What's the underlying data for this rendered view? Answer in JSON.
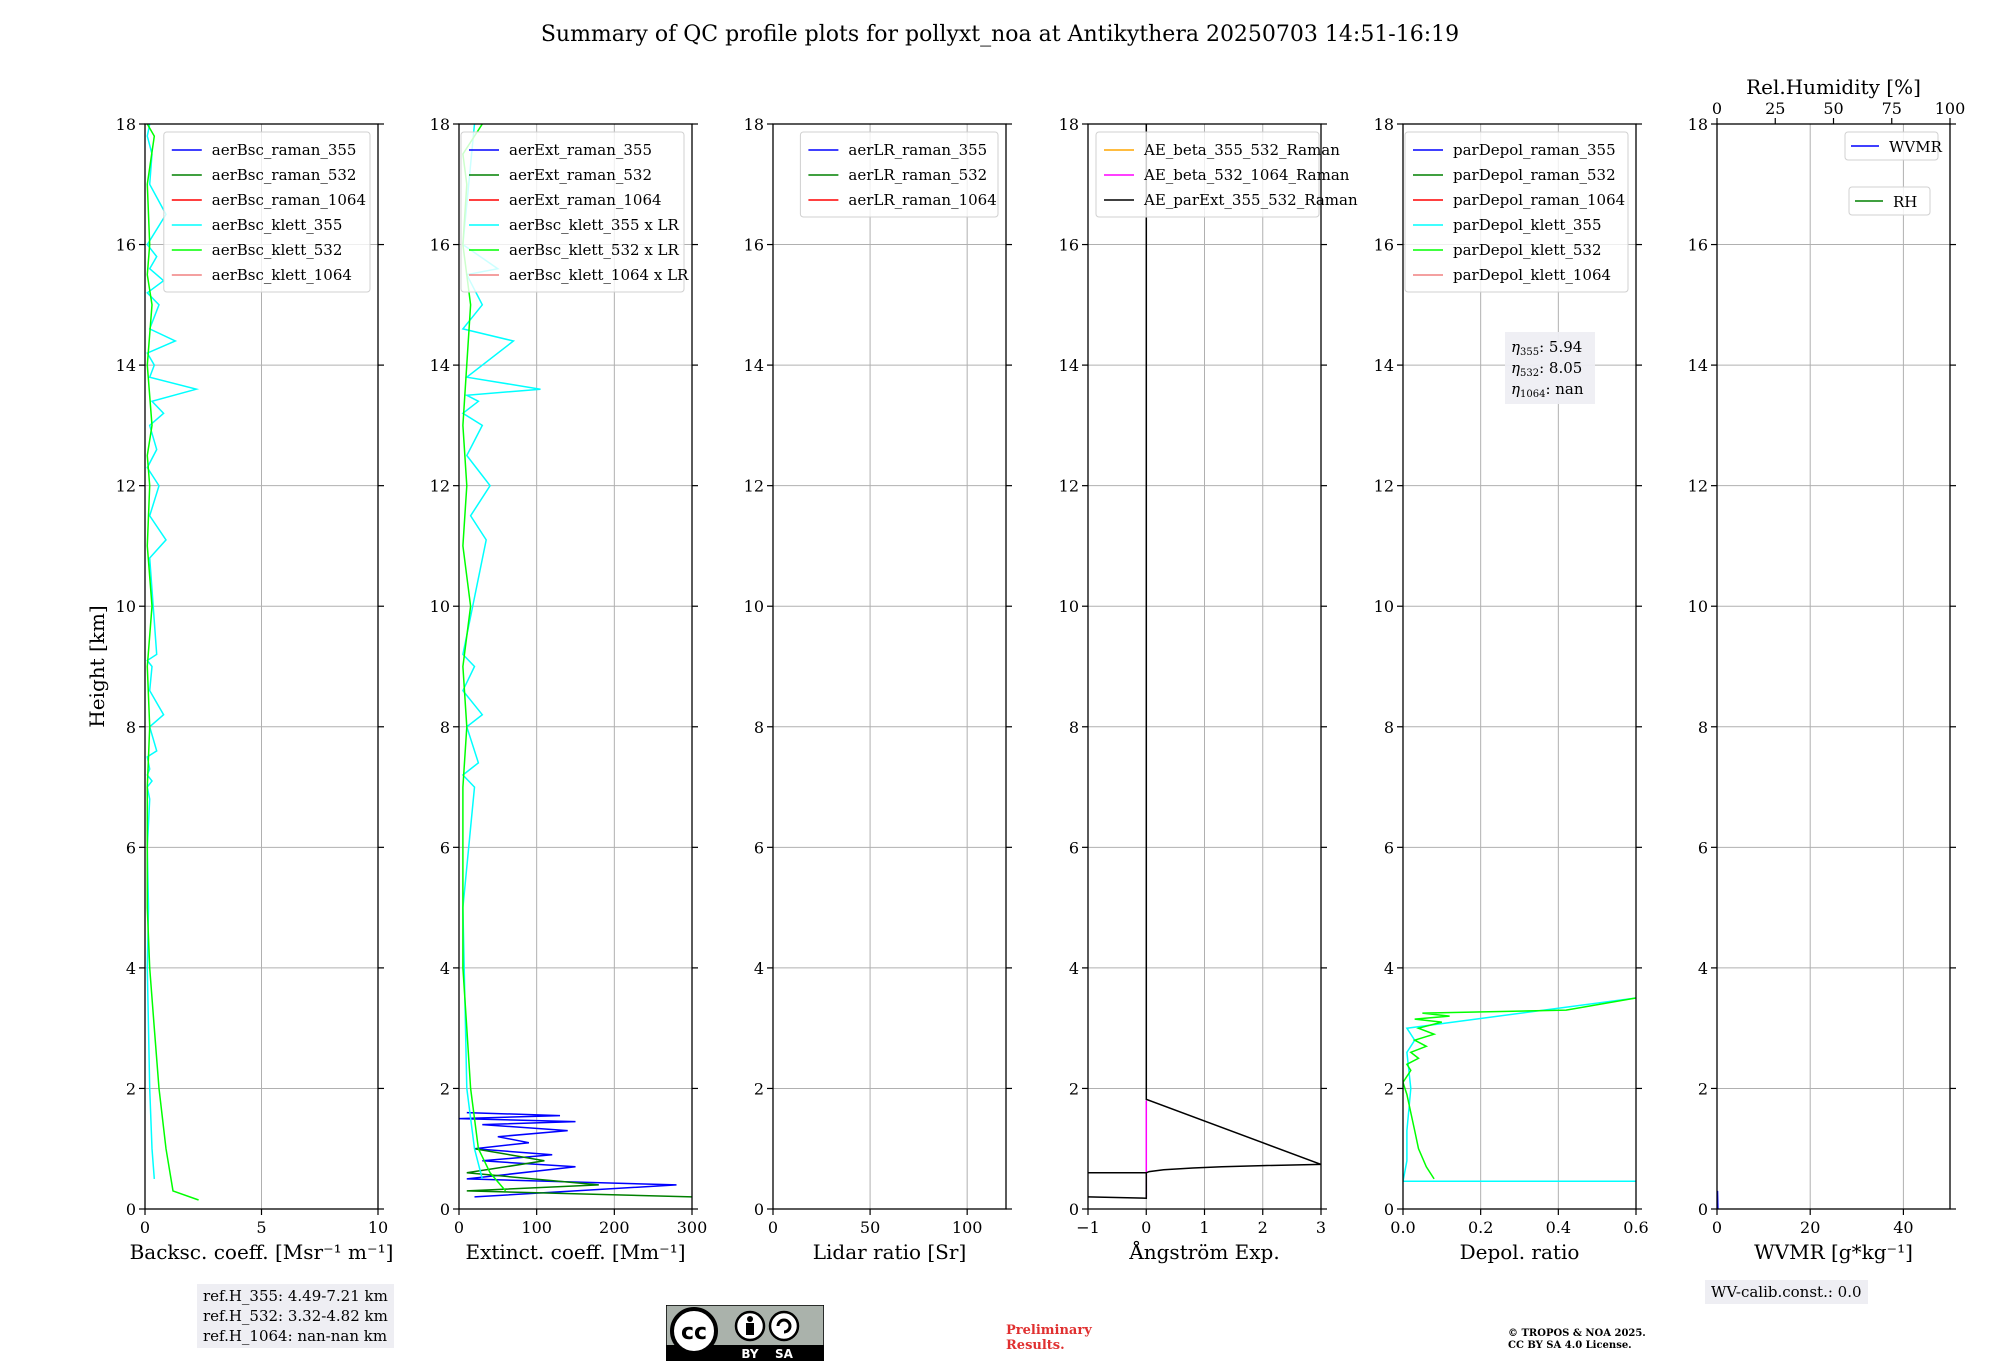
{
  "figure": {
    "title": "Summary of QC profile plots for pollyxt_noa at Antikythera 20250703 14:51-16:19",
    "ref_heights": [
      "ref.H_355: 4.49-7.21 km",
      "ref.H_532: 3.32-4.82 km",
      "ref.H_1064: nan-nan km"
    ],
    "wv_calib": "WV-calib.const.: 0.0",
    "preliminary": [
      "Preliminary",
      "Results."
    ],
    "copyright": [
      "© TROPOS & NOA 2025.",
      "CC BY SA 4.0 License."
    ],
    "license_badge": {
      "cc": "cc",
      "by": "BY",
      "sa": "SA"
    }
  },
  "chart_data": [
    {
      "type": "line",
      "ylabel": "Height [km]",
      "xlabel": "Backsc. coeff. [Msr⁻¹ m⁻¹]",
      "xlim": [
        0,
        10
      ],
      "ylim": [
        0,
        18
      ],
      "xticks": [
        "0",
        "5",
        "10"
      ],
      "yticks": [
        "0",
        "2",
        "4",
        "6",
        "8",
        "10",
        "12",
        "14",
        "16",
        "18"
      ],
      "grid": true,
      "legend_position": "top-right",
      "series": [
        {
          "name": "aerBsc_raman_355",
          "color": "#0000ff",
          "x": [],
          "y": []
        },
        {
          "name": "aerBsc_raman_532",
          "color": "#008000",
          "x": [],
          "y": []
        },
        {
          "name": "aerBsc_raman_1064",
          "color": "#ff0000",
          "x": [],
          "y": []
        },
        {
          "name": "aerBsc_klett_355",
          "color": "#00ffff",
          "x": [
            0.4,
            0.3,
            0.2,
            0.15,
            0.1,
            0.15,
            0.1,
            0.2,
            0.1,
            0.3,
            0.1,
            0.2,
            0.1,
            0.5,
            0.2,
            0.8,
            0.2,
            0.3,
            0.1,
            0.5,
            0.2,
            0.9,
            0.2,
            0.6,
            0.1,
            0.5,
            0.2,
            0.8,
            0.3,
            2.2,
            0.2,
            0.4,
            0.1,
            1.3,
            0.2,
            0.6,
            0.1,
            0.8,
            0.2,
            0.5,
            0.1,
            0.9,
            0.2,
            0.3,
            0.1,
            0.2
          ],
          "y": [
            0.5,
            1.0,
            2.0,
            3.0,
            4.0,
            5.0,
            6.0,
            6.8,
            7.0,
            7.1,
            7.2,
            7.3,
            7.5,
            7.6,
            8.0,
            8.2,
            8.6,
            9.0,
            9.1,
            9.2,
            10.8,
            11.1,
            11.5,
            12.0,
            12.3,
            12.6,
            13.0,
            13.2,
            13.4,
            13.6,
            13.8,
            14.0,
            14.2,
            14.4,
            14.6,
            15.0,
            15.2,
            15.4,
            15.6,
            15.8,
            16.0,
            16.5,
            17.0,
            17.5,
            17.8,
            18.0
          ]
        },
        {
          "name": "aerBsc_klett_532",
          "color": "#00ff00",
          "x": [
            2.3,
            1.2,
            0.9,
            0.6,
            0.4,
            0.2,
            0.1,
            0.1,
            0.2,
            0.1,
            0.3,
            0.1,
            0.2,
            0.1,
            0.3,
            0.1,
            0.3,
            0.1,
            0.2,
            0.1,
            0.4,
            0.1
          ],
          "y": [
            0.15,
            0.3,
            1.0,
            2.0,
            3.0,
            4.0,
            5.0,
            7.0,
            8.0,
            9.0,
            10.0,
            11.0,
            12.0,
            12.5,
            13.0,
            14.0,
            15.0,
            15.5,
            16.0,
            17.0,
            17.8,
            18.0
          ]
        },
        {
          "name": "aerBsc_klett_1064",
          "color": "#f08080",
          "x": [],
          "y": []
        }
      ]
    },
    {
      "type": "line",
      "xlabel": "Extinct. coeff. [Mm⁻¹]",
      "xlim": [
        0,
        300
      ],
      "ylim": [
        0,
        18
      ],
      "xticks": [
        "0",
        "100",
        "200",
        "300"
      ],
      "yticks": [
        "0",
        "2",
        "4",
        "6",
        "8",
        "10",
        "12",
        "14",
        "16",
        "18"
      ],
      "grid": true,
      "legend_position": "top-right",
      "series": [
        {
          "name": "aerExt_raman_355",
          "color": "#0000ff",
          "x": [
            20,
            280,
            10,
            150,
            30,
            120,
            20,
            90,
            50,
            140,
            30,
            150,
            0,
            130,
            10
          ],
          "y": [
            0.2,
            0.4,
            0.5,
            0.7,
            0.8,
            0.9,
            1.0,
            1.1,
            1.2,
            1.3,
            1.4,
            1.45,
            1.5,
            1.55,
            1.6
          ]
        },
        {
          "name": "aerExt_raman_532",
          "color": "#008000",
          "x": [
            300,
            10,
            180,
            10,
            110,
            20
          ],
          "y": [
            0.2,
            0.3,
            0.4,
            0.6,
            0.8,
            1.0
          ]
        },
        {
          "name": "aerExt_raman_1064",
          "color": "#ff0000",
          "x": [],
          "y": []
        },
        {
          "name": "aerBsc_klett_355 x LR",
          "color": "#00ffff",
          "x": [
            30,
            20,
            10,
            5,
            20,
            5,
            25,
            10,
            30,
            5,
            20,
            5,
            35,
            15,
            40,
            10,
            30,
            5,
            25,
            10,
            105,
            10,
            70,
            5,
            30,
            10,
            50,
            5,
            20
          ],
          "y": [
            0.5,
            1.0,
            2.0,
            5.0,
            7.0,
            7.2,
            7.4,
            8.0,
            8.2,
            8.6,
            9.0,
            9.2,
            11.1,
            11.5,
            12.0,
            12.5,
            13.0,
            13.2,
            13.4,
            13.5,
            13.6,
            13.8,
            14.4,
            14.6,
            15.0,
            15.5,
            15.6,
            16.0,
            18.0
          ]
        },
        {
          "name": "aerBsc_klett_532 x LR",
          "color": "#00ff00",
          "x": [
            60,
            40,
            25,
            15,
            10,
            5,
            5,
            10,
            5,
            15,
            5,
            10,
            5,
            15,
            5,
            10,
            5,
            30
          ],
          "y": [
            0.3,
            0.6,
            1.0,
            2.0,
            3.0,
            4.0,
            7.0,
            8.0,
            9.0,
            10.0,
            11.0,
            12.0,
            13.0,
            15.0,
            16.0,
            17.0,
            17.5,
            18.0
          ]
        },
        {
          "name": "aerBsc_klett_1064 x LR",
          "color": "#f08080",
          "x": [],
          "y": []
        }
      ]
    },
    {
      "type": "line",
      "xlabel": "Lidar ratio [Sr]",
      "xlim": [
        0,
        120
      ],
      "ylim": [
        0,
        18
      ],
      "xticks": [
        "0",
        "50",
        "100"
      ],
      "yticks": [
        "0",
        "2",
        "4",
        "6",
        "8",
        "10",
        "12",
        "14",
        "16",
        "18"
      ],
      "grid": true,
      "legend_position": "top-right",
      "series": [
        {
          "name": "aerLR_raman_355",
          "color": "#0000ff",
          "x": [],
          "y": []
        },
        {
          "name": "aerLR_raman_532",
          "color": "#008000",
          "x": [],
          "y": []
        },
        {
          "name": "aerLR_raman_1064",
          "color": "#ff0000",
          "x": [],
          "y": []
        }
      ]
    },
    {
      "type": "line",
      "xlabel": "Ångström Exp.",
      "xlim": [
        -1,
        3
      ],
      "ylim": [
        0,
        18
      ],
      "xticks": [
        "−1",
        "0",
        "1",
        "2",
        "3"
      ],
      "yticks": [
        "0",
        "2",
        "4",
        "6",
        "8",
        "10",
        "12",
        "14",
        "16",
        "18"
      ],
      "grid": true,
      "legend_position": "top-left",
      "series": [
        {
          "name": "AE_beta_355_532_Raman",
          "color": "#ffa500",
          "x": [],
          "y": []
        },
        {
          "name": "AE_beta_532_1064_Raman",
          "color": "#ff00ff",
          "x": [
            0,
            0
          ],
          "y": [
            0.2,
            1.8
          ]
        },
        {
          "name": "AE_parExt_355_532_Raman",
          "color": "#000000",
          "x": [
            -1,
            0,
            0,
            -1,
            0,
            0.05,
            0.3,
            0.8,
            1.3,
            2.0,
            3.0,
            0,
            0
          ],
          "y": [
            0.2,
            0.18,
            0.6,
            0.6,
            0.6,
            0.62,
            0.65,
            0.68,
            0.7,
            0.72,
            0.74,
            1.82,
            18.0
          ]
        }
      ]
    },
    {
      "type": "line",
      "xlabel": "Depol. ratio",
      "xlim": [
        0,
        0.6
      ],
      "ylim": [
        0,
        18
      ],
      "xticks": [
        "0.0",
        "0.2",
        "0.4",
        "0.6"
      ],
      "yticks": [
        "0",
        "2",
        "4",
        "6",
        "8",
        "10",
        "12",
        "14",
        "16",
        "18"
      ],
      "grid": true,
      "legend_position": "top-right",
      "annotations": [
        "η355: 5.94",
        "η532: 8.05",
        "η1064: nan"
      ],
      "annotation_parts": [
        {
          "sym": "η",
          "sub": "355",
          "val": ": 5.94"
        },
        {
          "sym": "η",
          "sub": "532",
          "val": ": 8.05"
        },
        {
          "sym": "η",
          "sub": "1064",
          "val": ": nan"
        }
      ],
      "series": [
        {
          "name": "parDepol_raman_355",
          "color": "#0000ff",
          "x": [],
          "y": []
        },
        {
          "name": "parDepol_raman_532",
          "color": "#008000",
          "x": [],
          "y": []
        },
        {
          "name": "parDepol_raman_1064",
          "color": "#ff0000",
          "x": [],
          "y": []
        },
        {
          "name": "parDepol_klett_355",
          "color": "#00ffff",
          "x": [
            0.6,
            0.0,
            0.01,
            0.01,
            0.02,
            0.01,
            0.03,
            0.01,
            0.6
          ],
          "y": [
            0.46,
            0.46,
            0.8,
            1.3,
            2.0,
            2.6,
            2.8,
            3.0,
            3.5
          ]
        },
        {
          "name": "parDepol_klett_532",
          "color": "#00ff00",
          "x": [
            0.08,
            0.06,
            0.04,
            0.03,
            0.02,
            0.01,
            0.0,
            0.02,
            0.01,
            0.04,
            0.02,
            0.06,
            0.03,
            0.08,
            0.04,
            0.1,
            0.03,
            0.12,
            0.05,
            0.42,
            0.6
          ],
          "y": [
            0.5,
            0.7,
            1.0,
            1.3,
            1.6,
            1.9,
            2.1,
            2.3,
            2.4,
            2.5,
            2.6,
            2.7,
            2.8,
            2.9,
            3.0,
            3.1,
            3.15,
            3.2,
            3.25,
            3.3,
            3.5
          ]
        },
        {
          "name": "parDepol_klett_1064",
          "color": "#f08080",
          "x": [],
          "y": []
        }
      ]
    },
    {
      "type": "line",
      "xlabel": "WVMR [g*kg⁻¹]",
      "xlim": [
        0,
        50
      ],
      "ylim": [
        0,
        18
      ],
      "xticks": [
        "0",
        "20",
        "40"
      ],
      "yticks": [
        "0",
        "2",
        "4",
        "6",
        "8",
        "10",
        "12",
        "14",
        "16",
        "18"
      ],
      "top_xlabel": "Rel.Humidity [%]",
      "top_xlim": [
        0,
        100
      ],
      "top_xticks": [
        "0",
        "25",
        "50",
        "75",
        "100"
      ],
      "grid": true,
      "legend_position": "top-right",
      "series": [
        {
          "name": "WVMR",
          "color": "#0000ff",
          "x": [
            0.2,
            0.1
          ],
          "y": [
            0.0,
            0.3
          ]
        },
        {
          "name": "RH",
          "color": "#008000",
          "x": [],
          "y": []
        }
      ]
    }
  ]
}
